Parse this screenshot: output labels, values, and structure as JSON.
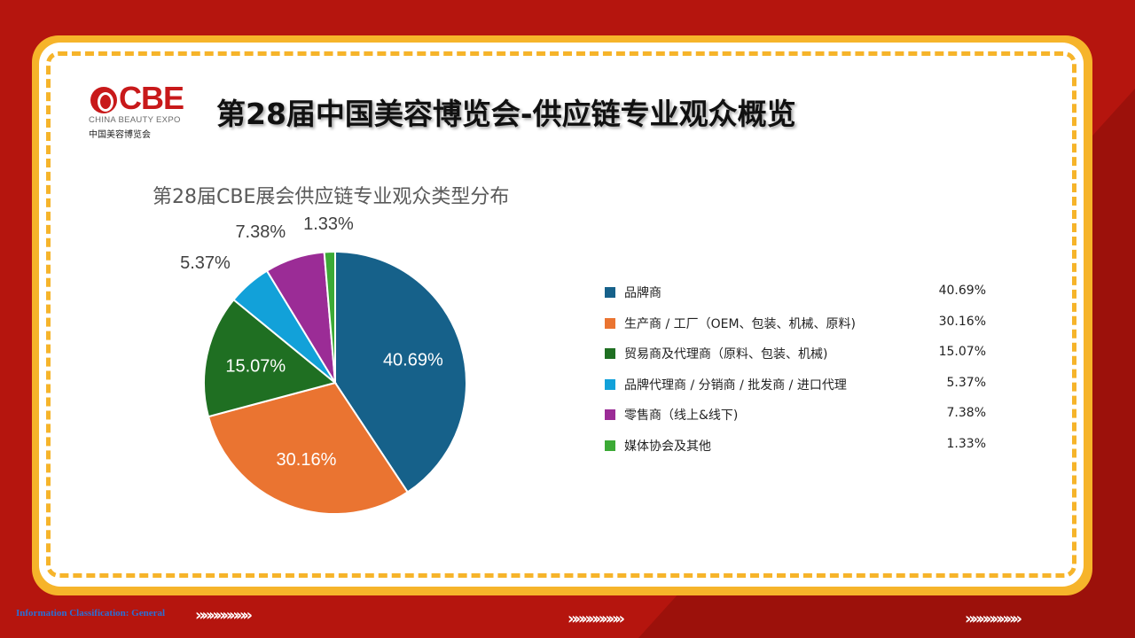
{
  "logo": {
    "brand": "CBE",
    "subtitle": "CHINA BEAUTY EXPO",
    "chinese": "中国美容博览会"
  },
  "page_title": "第28届中国美容博览会-供应链专业观众概览",
  "footer": {
    "classification": "Information Classification: General",
    "chevron_glyphs": "»»»»»»»»"
  },
  "chart_data": {
    "type": "pie",
    "title": "第28届CBE展会供应链专业观众类型分布",
    "slices": [
      {
        "label": "品牌商",
        "value": 40.69,
        "display": "40.69%",
        "color": "#16618a"
      },
      {
        "label": "生产商 / 工厂（OEM、包装、机械、原料)",
        "value": 30.16,
        "display": "30.16%",
        "color": "#ea7431"
      },
      {
        "label": "贸易商及代理商（原料、包装、机械)",
        "value": 15.07,
        "display": "15.07%",
        "color": "#1f6f22"
      },
      {
        "label": "品牌代理商 / 分销商 / 批发商 / 进口代理",
        "value": 5.37,
        "display": "5.37%",
        "color": "#12a1d9"
      },
      {
        "label": "零售商（线上&线下)",
        "value": 7.38,
        "display": "7.38%",
        "color": "#9b2c96"
      },
      {
        "label": "媒体协会及其他",
        "value": 1.33,
        "display": "1.33%",
        "color": "#3caa36"
      }
    ],
    "legend_position": "right"
  }
}
